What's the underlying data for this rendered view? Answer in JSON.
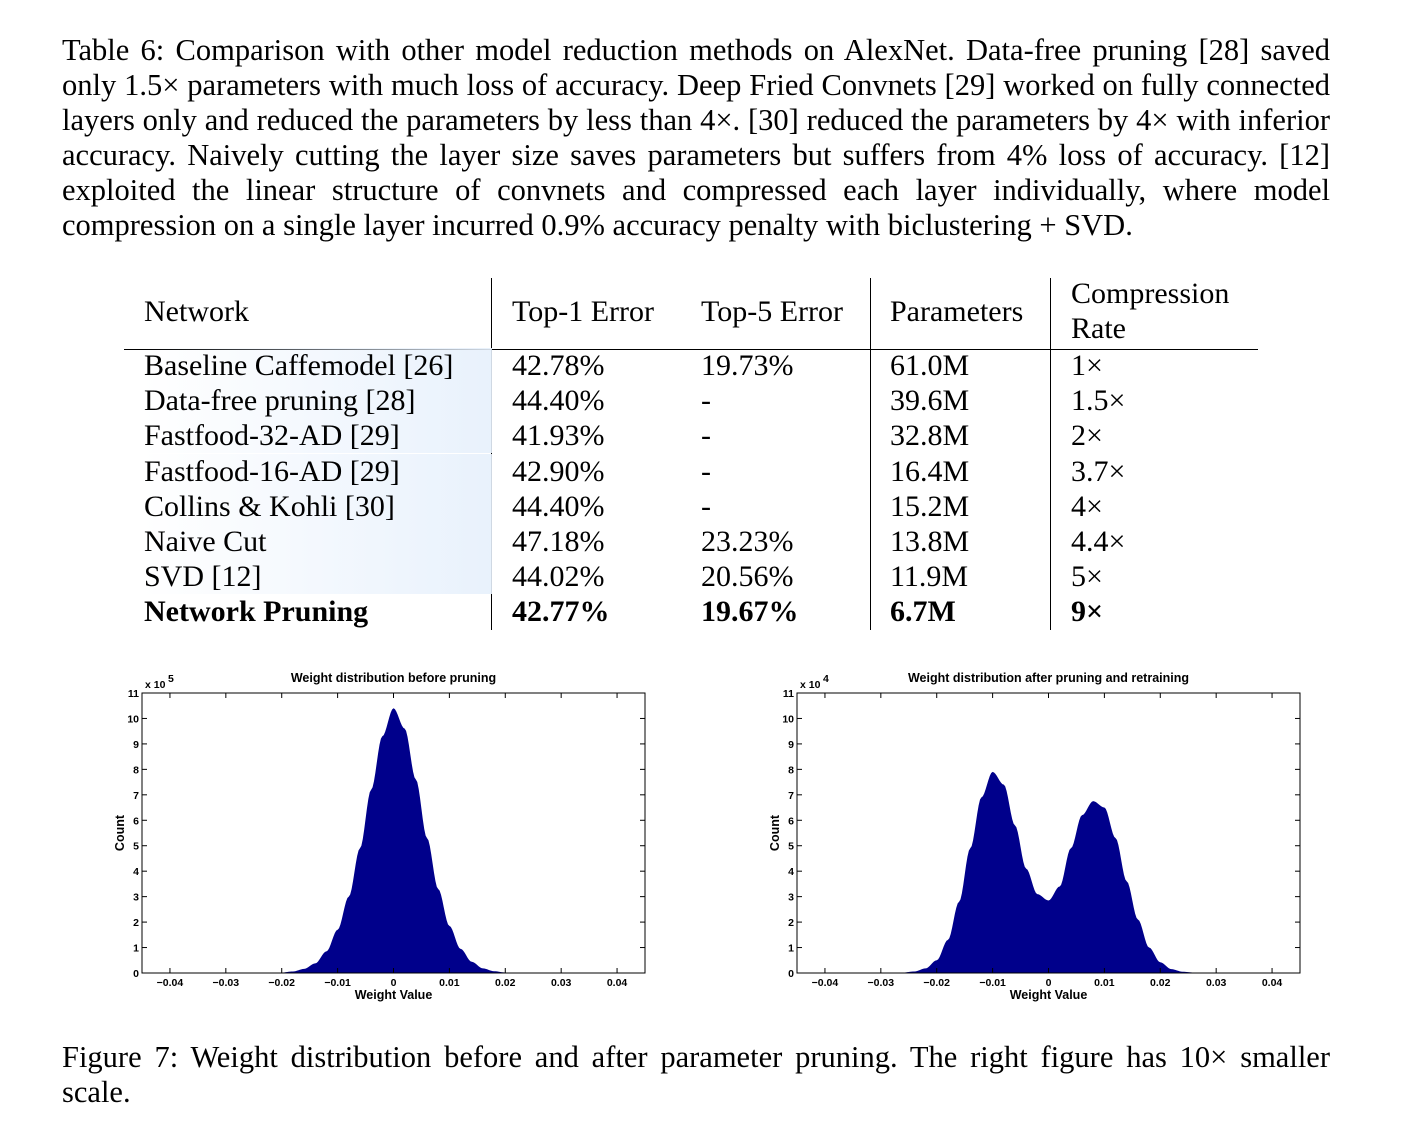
{
  "table_caption": "Table 6: Comparison with other model reduction methods on AlexNet. Data-free pruning [28] saved only 1.5× parameters with much loss of accuracy. Deep Fried Convnets [29] worked on fully connected layers only and reduced the parameters by less than 4×. [30] reduced the parameters by 4× with inferior accuracy. Naively cutting the layer size saves parameters but suffers from 4% loss of accuracy. [12] exploited the linear structure of convnets and compressed each layer individually, where model compression on a single layer incurred 0.9% accuracy penalty with biclustering + SVD.",
  "table": {
    "headers": {
      "network": "Network",
      "top1": "Top-1 Error",
      "top5": "Top-5 Error",
      "params": "Parameters",
      "rate_line1": "Compression",
      "rate_line2": "Rate"
    },
    "rows": [
      {
        "network": "Baseline Caffemodel [26]",
        "top1": "42.78%",
        "top5": "19.73%",
        "params": "61.0M",
        "rate": "1×"
      },
      {
        "network": "Data-free pruning [28]",
        "top1": "44.40%",
        "top5": "-",
        "params": "39.6M",
        "rate": "1.5×"
      },
      {
        "network": "Fastfood-32-AD [29]",
        "top1": "41.93%",
        "top5": "-",
        "params": "32.8M",
        "rate": "2×"
      },
      {
        "network": "Fastfood-16-AD [29]",
        "top1": "42.90%",
        "top5": "-",
        "params": "16.4M",
        "rate": "3.7×"
      },
      {
        "network": "Collins & Kohli [30]",
        "top1": "44.40%",
        "top5": "-",
        "params": "15.2M",
        "rate": "4×"
      },
      {
        "network": "Naive Cut",
        "top1": "47.18%",
        "top5": "23.23%",
        "params": "13.8M",
        "rate": "4.4×"
      },
      {
        "network": "SVD [12]",
        "top1": "44.02%",
        "top5": "20.56%",
        "params": "11.9M",
        "rate": "5×"
      },
      {
        "network": "Network Pruning",
        "top1": "42.77%",
        "top5": "19.67%",
        "params": "6.7M",
        "rate": "9×",
        "bold": true
      }
    ]
  },
  "chart_data": [
    {
      "type": "bar",
      "title": "Weight distribution before pruning",
      "xlabel": "Weight Value",
      "ylabel": "Count",
      "y_multiplier": "x 10",
      "y_exponent": "5",
      "xlim": [
        -0.045,
        0.045
      ],
      "ylim": [
        0,
        11
      ],
      "xticks": [
        -0.04,
        -0.03,
        -0.02,
        -0.01,
        0,
        0.01,
        0.02,
        0.03,
        0.04
      ],
      "xtick_labels": [
        "−0.04",
        "−0.03",
        "−0.02",
        "−0.01",
        "0",
        "0.01",
        "0.02",
        "0.03",
        "0.04"
      ],
      "yticks": [
        0,
        1,
        2,
        3,
        4,
        5,
        6,
        7,
        8,
        9,
        10,
        11
      ],
      "bar_color": "#00008B",
      "grid": false,
      "x": [
        -0.02,
        -0.018,
        -0.016,
        -0.014,
        -0.012,
        -0.01,
        -0.008,
        -0.006,
        -0.004,
        -0.002,
        0.0,
        0.002,
        0.004,
        0.006,
        0.008,
        0.01,
        0.012,
        0.014,
        0.016,
        0.018,
        0.02
      ],
      "values": [
        0.02,
        0.06,
        0.16,
        0.38,
        0.85,
        1.7,
        3.0,
        4.9,
        7.2,
        9.3,
        10.4,
        9.6,
        7.6,
        5.3,
        3.3,
        1.85,
        0.95,
        0.44,
        0.18,
        0.07,
        0.02
      ]
    },
    {
      "type": "bar",
      "title": "Weight distribution after pruning and retraining",
      "xlabel": "Weight Value",
      "ylabel": "Count",
      "y_multiplier": "x 10",
      "y_exponent": "4",
      "xlim": [
        -0.045,
        0.045
      ],
      "ylim": [
        0,
        11
      ],
      "xticks": [
        -0.04,
        -0.03,
        -0.02,
        -0.01,
        0,
        0.01,
        0.02,
        0.03,
        0.04
      ],
      "xtick_labels": [
        "−0.04",
        "−0.03",
        "−0.02",
        "−0.01",
        "0",
        "0.01",
        "0.02",
        "0.03",
        "0.04"
      ],
      "yticks": [
        0,
        1,
        2,
        3,
        4,
        5,
        6,
        7,
        8,
        9,
        10,
        11
      ],
      "bar_color": "#00008B",
      "grid": false,
      "x": [
        -0.026,
        -0.024,
        -0.022,
        -0.02,
        -0.018,
        -0.016,
        -0.014,
        -0.012,
        -0.01,
        -0.008,
        -0.006,
        -0.004,
        -0.002,
        0.0,
        0.002,
        0.004,
        0.006,
        0.008,
        0.01,
        0.012,
        0.014,
        0.016,
        0.018,
        0.02,
        0.022,
        0.024,
        0.026
      ],
      "values": [
        0.02,
        0.06,
        0.18,
        0.5,
        1.3,
        2.8,
        4.9,
        6.9,
        7.9,
        7.4,
        5.8,
        4.1,
        3.1,
        2.85,
        3.4,
        4.9,
        6.2,
        6.75,
        6.5,
        5.3,
        3.6,
        2.1,
        1.0,
        0.42,
        0.15,
        0.05,
        0.02
      ]
    }
  ],
  "figure_caption": "Figure 7: Weight distribution before and after parameter pruning. The right figure has 10× smaller scale."
}
